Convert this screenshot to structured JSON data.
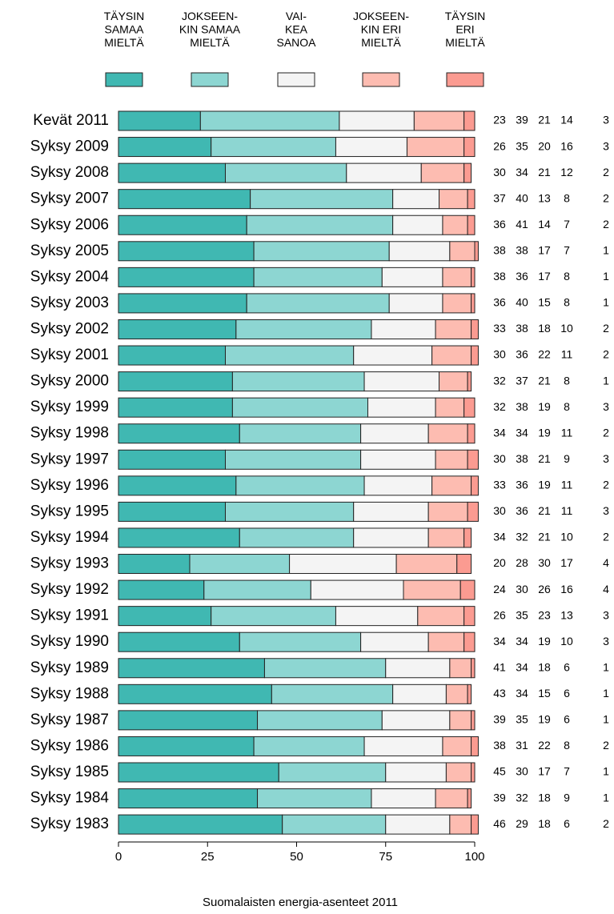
{
  "chart_data": {
    "type": "stacked_barh",
    "footer": "Suomalaisten energia-asenteet 2011",
    "categories": [
      "Kevät 2011",
      "Syksy 2009",
      "Syksy 2008",
      "Syksy 2007",
      "Syksy 2006",
      "Syksy 2005",
      "Syksy 2004",
      "Syksy 2003",
      "Syksy 2002",
      "Syksy 2001",
      "Syksy 2000",
      "Syksy 1999",
      "Syksy 1998",
      "Syksy 1997",
      "Syksy 1996",
      "Syksy 1995",
      "Syksy 1994",
      "Syksy 1993",
      "Syksy 1992",
      "Syksy 1991",
      "Syksy 1990",
      "Syksy 1989",
      "Syksy 1988",
      "Syksy 1987",
      "Syksy 1986",
      "Syksy 1985",
      "Syksy 1984",
      "Syksy 1983"
    ],
    "series": [
      {
        "name": "TÄYSIN\nSAMAA\nMIELTÄ",
        "color": "#40b8b2",
        "values": [
          23,
          26,
          30,
          37,
          36,
          38,
          38,
          36,
          33,
          30,
          32,
          32,
          34,
          30,
          33,
          30,
          34,
          20,
          24,
          26,
          34,
          41,
          43,
          39,
          38,
          45,
          39,
          46
        ]
      },
      {
        "name": "JOKSEEN-\nKIN SAMAA\nMIELTÄ",
        "color": "#8dd6d2",
        "values": [
          39,
          35,
          34,
          40,
          41,
          38,
          36,
          40,
          38,
          36,
          37,
          38,
          34,
          38,
          36,
          36,
          32,
          28,
          30,
          35,
          34,
          34,
          34,
          35,
          31,
          30,
          32,
          29
        ]
      },
      {
        "name": "VAI-\nKEA\nSANOA",
        "color": "#f4f4f4",
        "values": [
          21,
          20,
          21,
          13,
          14,
          17,
          17,
          15,
          18,
          22,
          21,
          19,
          19,
          21,
          19,
          21,
          21,
          30,
          26,
          23,
          19,
          18,
          15,
          19,
          22,
          17,
          18,
          18
        ]
      },
      {
        "name": "JOKSEEN-\nKIN ERI\nMIELTÄ",
        "color": "#fdbcb1",
        "values": [
          14,
          16,
          12,
          8,
          7,
          7,
          8,
          8,
          10,
          11,
          8,
          8,
          11,
          9,
          11,
          11,
          10,
          17,
          16,
          13,
          10,
          6,
          6,
          6,
          8,
          7,
          9,
          6
        ]
      },
      {
        "name": "TÄYSIN\nERI\nMIELTÄ",
        "color": "#fb9b91",
        "values": [
          3,
          3,
          2,
          2,
          2,
          1,
          1,
          1,
          2,
          2,
          1,
          3,
          2,
          3,
          2,
          3,
          2,
          4,
          4,
          3,
          3,
          1,
          1,
          1,
          2,
          1,
          1,
          2
        ]
      }
    ],
    "xlim": [
      0,
      100
    ],
    "xticks": [
      0,
      25,
      50,
      75,
      100
    ]
  }
}
